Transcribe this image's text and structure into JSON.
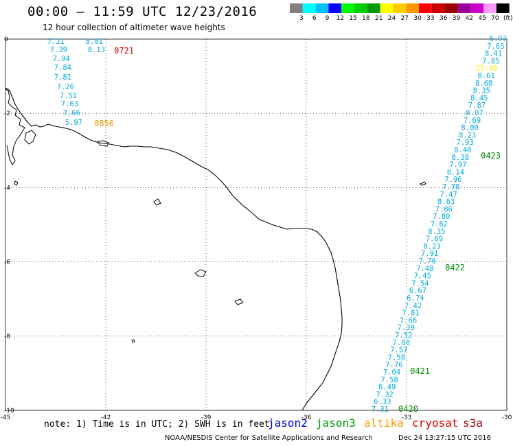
{
  "title": "00:00 — 11:59 UTC 12/23/2016",
  "subtitle": "12 hour collection of altimeter wave heights",
  "legend": {
    "colors": [
      "#7f7f7f",
      "#00ffff",
      "#00bfff",
      "#0000ff",
      "#00ff00",
      "#00cc00",
      "#009900",
      "#ffff00",
      "#ffcc00",
      "#ff9900",
      "#ff0000",
      "#cc0000",
      "#990000",
      "#990099",
      "#cc00cc",
      "#ff99ff",
      "#000000"
    ],
    "labels": [
      "3",
      "6",
      "9",
      "12",
      "15",
      "18",
      "21",
      "24",
      "27",
      "30",
      "33",
      "36",
      "39",
      "42",
      "45",
      "70",
      "(ft)"
    ]
  },
  "axes": {
    "lon_min": -45,
    "lon_max": -30,
    "lat_min": -10,
    "lat_max": 0,
    "lon_ticks": [
      "-45",
      "-42",
      "-39",
      "-36",
      "-33",
      "-30"
    ],
    "lat_ticks": [
      "0",
      "-2",
      "-4",
      "-6",
      "-8",
      "-10"
    ]
  },
  "tracks": [
    {
      "name": "cryosat",
      "color": "#00aadd",
      "time_color": "#dd0000",
      "time": "0721",
      "values": [
        "7.21",
        "8.01",
        "7.39",
        "8.13",
        "7.94",
        "7.84",
        "7.81",
        "7.26",
        "7.51",
        "7.63",
        "7.66",
        "5.97"
      ]
    },
    {
      "name": "altika",
      "color": "#00aadd",
      "time_color": "#ee9900",
      "time": "0856",
      "values": []
    },
    {
      "name": "jason3",
      "color": "#00aadd",
      "time_color": "#008800",
      "times": [
        "0423",
        "0422",
        "0421",
        "0420"
      ],
      "values": [
        "6.97",
        "7.65",
        "8.41",
        "7.85",
        "23.40",
        "8.61",
        "8.60",
        "8.35",
        "8.45",
        "7.87",
        "8.07",
        "7.69",
        "8.00",
        "8.23",
        "7.93",
        "8.40",
        "8.38",
        "7.97",
        "8.14",
        "7.96",
        "7.78",
        "7.47",
        "8.63",
        "7.86",
        "7.80",
        "7.62",
        "8.35",
        "7.69",
        "8.23",
        "7.91",
        "7.76",
        "7.48",
        "7.45",
        "7.54",
        "6.67",
        "6.74",
        "7.42",
        "7.81",
        "7.66",
        "7.39",
        "7.52",
        "7.80",
        "7.57",
        "7.58",
        "7.76",
        "7.04",
        "7.58",
        "6.49",
        "7.32",
        "6.33",
        "7.31"
      ]
    }
  ],
  "note": "note: 1) Time is in UTC; 2) SWH is in feet",
  "satellites": [
    {
      "name": "jason2",
      "color": "#0000dd"
    },
    {
      "name": "jason3",
      "color": "#009900"
    },
    {
      "name": "altika",
      "color": "#ff9900"
    },
    {
      "name": "cryosat",
      "color": "#dd0000"
    },
    {
      "name": "s3a",
      "color": "#990000"
    }
  ],
  "footer_left": "NOAA/NESDIS Center for Satellite Applications and Research",
  "footer_right": "Dec 24 13:27:15 UTC 2016"
}
